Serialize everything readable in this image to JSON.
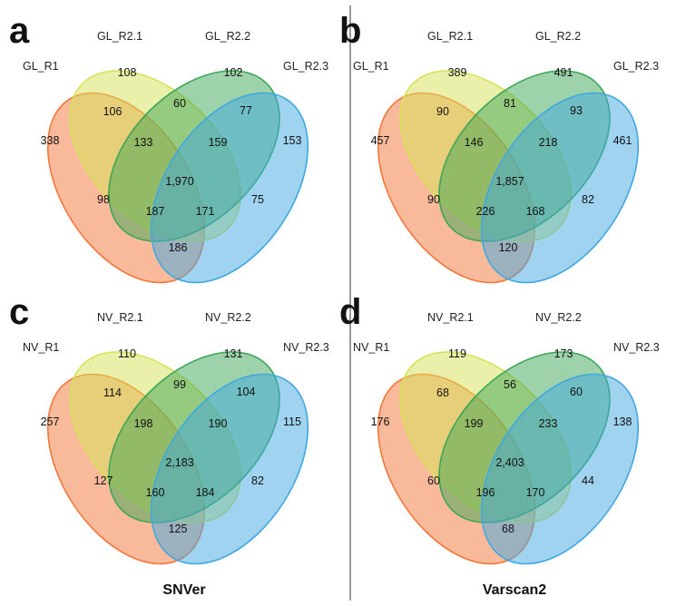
{
  "colors": {
    "set1": "#f4763a",
    "set2": "#d6e255",
    "set3": "#3da556",
    "set4": "#3fa8e0",
    "divider": "#555555"
  },
  "column_titles": [
    "SNVer",
    "Varscan2"
  ],
  "panels": [
    {
      "letter": "a",
      "sets": [
        "GL_R1",
        "GL_R2.1",
        "GL_R2.2",
        "GL_R2.3"
      ],
      "counts": {
        "only_1": "338",
        "only_2": "108",
        "only_3": "102",
        "only_4": "153",
        "r12": "106",
        "r23": "60",
        "r34": "77",
        "r123": "133",
        "r234": "159",
        "r1234": "1,970",
        "r13": "98",
        "r24": "75",
        "r134": "187",
        "r124": "171",
        "r14": "186"
      }
    },
    {
      "letter": "b",
      "sets": [
        "GL_R1",
        "GL_R2.1",
        "GL_R2.2",
        "GL_R2.3"
      ],
      "counts": {
        "only_1": "457",
        "only_2": "389",
        "only_3": "491",
        "only_4": "461",
        "r12": "90",
        "r23": "81",
        "r34": "93",
        "r123": "146",
        "r234": "218",
        "r1234": "1,857",
        "r13": "90",
        "r24": "82",
        "r134": "226",
        "r124": "168",
        "r14": "120"
      }
    },
    {
      "letter": "c",
      "sets": [
        "NV_R1",
        "NV_R2.1",
        "NV_R2.2",
        "NV_R2.3"
      ],
      "counts": {
        "only_1": "257",
        "only_2": "110",
        "only_3": "131",
        "only_4": "115",
        "r12": "114",
        "r23": "99",
        "r34": "104",
        "r123": "198",
        "r234": "190",
        "r1234": "2,183",
        "r13": "127",
        "r24": "82",
        "r134": "160",
        "r124": "184",
        "r14": "125"
      }
    },
    {
      "letter": "d",
      "sets": [
        "NV_R1",
        "NV_R2.1",
        "NV_R2.2",
        "NV_R2.3"
      ],
      "counts": {
        "only_1": "176",
        "only_2": "119",
        "only_3": "173",
        "only_4": "138",
        "r12": "68",
        "r23": "56",
        "r34": "60",
        "r123": "199",
        "r234": "233",
        "r1234": "2,403",
        "r13": "60",
        "r24": "44",
        "r134": "196",
        "r124": "170",
        "r14": "68"
      }
    }
  ]
}
